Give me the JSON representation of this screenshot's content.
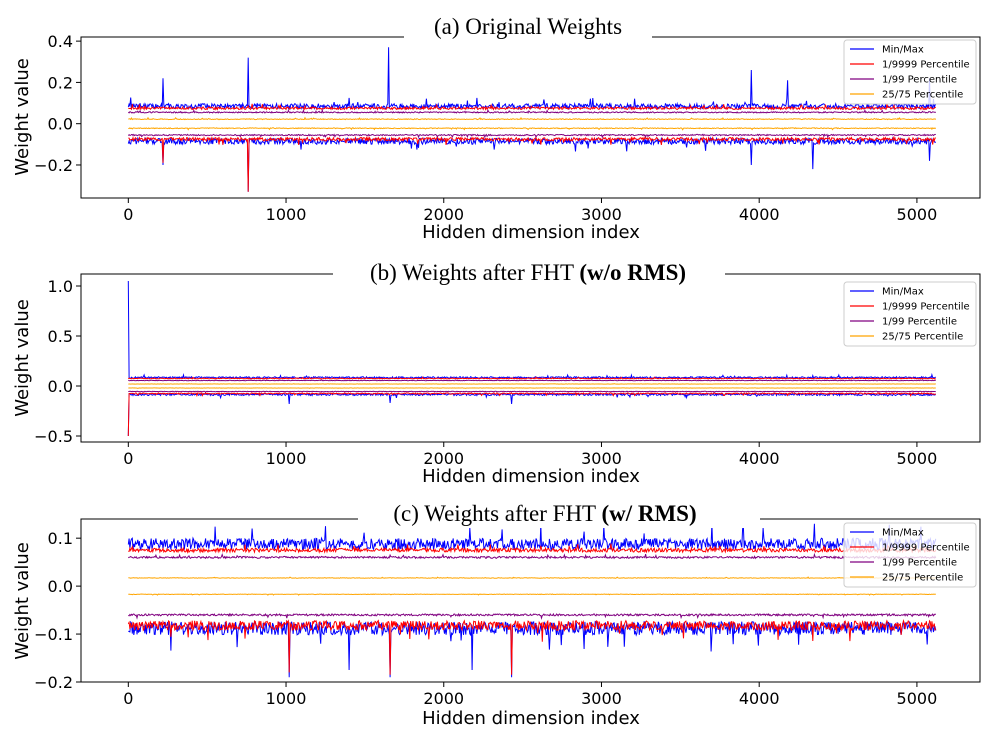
{
  "chart_data": [
    {
      "type": "line",
      "title": "(a) Original Weights",
      "title_bold": "",
      "xlabel": "Hidden dimension index",
      "ylabel": "Weight value",
      "xlim": [
        -300,
        5400
      ],
      "ylim": [
        -0.36,
        0.42
      ],
      "xticks": [
        0,
        1000,
        2000,
        3000,
        4000,
        5000
      ],
      "xtick_labels": [
        "0",
        "1000",
        "2000",
        "3000",
        "4000",
        "5000"
      ],
      "yticks": [
        -0.2,
        0.0,
        0.2,
        0.4
      ],
      "ytick_labels": [
        "−0.2",
        "0.0",
        "0.2",
        "0.4"
      ],
      "legend": [
        "Min/Max",
        "1/9999 Percentile",
        "1/99 Percentile",
        "25/75 Percentile"
      ],
      "legend_loc": "upper right",
      "colors": {
        "minmax": "#0000ff",
        "p9999": "#ff0000",
        "p99": "#800080",
        "p2575": "#ffa500"
      },
      "series": [
        {
          "name": "Min/Max (upper)",
          "base": 0.085,
          "noise": 0.012,
          "spikes": [
            [
              220,
              0.22
            ],
            [
              760,
              0.32
            ],
            [
              1650,
              0.37
            ],
            [
              3950,
              0.26
            ],
            [
              4180,
              0.21
            ],
            [
              5080,
              0.22
            ]
          ]
        },
        {
          "name": "Min/Max (lower)",
          "base": -0.085,
          "noise": 0.015,
          "spikes": [
            [
              220,
              -0.2
            ],
            [
              760,
              -0.33
            ],
            [
              3950,
              -0.2
            ],
            [
              4340,
              -0.22
            ],
            [
              5080,
              -0.18
            ]
          ]
        },
        {
          "name": "1/9999 Percentile (upper)",
          "base": 0.075,
          "noise": 0.006
        },
        {
          "name": "1/9999 Percentile (lower)",
          "base": -0.075,
          "noise": 0.008,
          "spikes": [
            [
              220,
              -0.19
            ],
            [
              760,
              -0.33
            ]
          ]
        },
        {
          "name": "1/99 Percentile (upper)",
          "base": 0.055,
          "noise": 0.003
        },
        {
          "name": "1/99 Percentile (lower)",
          "base": -0.055,
          "noise": 0.003
        },
        {
          "name": "25/75 Percentile (upper)",
          "base": 0.022,
          "noise": 0.002
        },
        {
          "name": "25/75 Percentile (lower)",
          "base": -0.022,
          "noise": 0.002
        }
      ]
    },
    {
      "type": "line",
      "title": "(b) Weights after FHT ",
      "title_bold": "(w/o RMS)",
      "xlabel": "Hidden dimension index",
      "ylabel": "Weight value",
      "xlim": [
        -300,
        5400
      ],
      "ylim": [
        -0.56,
        1.12
      ],
      "xticks": [
        0,
        1000,
        2000,
        3000,
        4000,
        5000
      ],
      "xtick_labels": [
        "0",
        "1000",
        "2000",
        "3000",
        "4000",
        "5000"
      ],
      "yticks": [
        -0.5,
        0.0,
        0.5,
        1.0
      ],
      "ytick_labels": [
        "−0.5",
        "0.0",
        "0.5",
        "1.0"
      ],
      "legend": [
        "Min/Max",
        "1/9999 Percentile",
        "1/99 Percentile",
        "25/75 Percentile"
      ],
      "legend_loc": "upper right",
      "colors": {
        "minmax": "#0000ff",
        "p9999": "#ff0000",
        "p99": "#800080",
        "p2575": "#ffa500"
      },
      "series": [
        {
          "name": "Min/Max (upper)",
          "base": 0.085,
          "noise": 0.008,
          "spikes": [
            [
              0,
              1.05
            ]
          ]
        },
        {
          "name": "Min/Max (lower)",
          "base": -0.085,
          "noise": 0.01,
          "spikes": [
            [
              0,
              -0.5
            ],
            [
              1020,
              -0.18
            ],
            [
              1660,
              -0.17
            ],
            [
              2430,
              -0.18
            ]
          ]
        },
        {
          "name": "1/9999 Percentile (upper)",
          "base": 0.075,
          "noise": 0.004
        },
        {
          "name": "1/9999 Percentile (lower)",
          "base": -0.075,
          "noise": 0.006,
          "spikes": [
            [
              0,
              -0.5
            ]
          ]
        },
        {
          "name": "1/99 Percentile (upper)",
          "base": 0.055,
          "noise": 0.002
        },
        {
          "name": "1/99 Percentile (lower)",
          "base": -0.055,
          "noise": 0.002
        },
        {
          "name": "25/75 Percentile (upper)",
          "base": 0.02,
          "noise": 0.001
        },
        {
          "name": "25/75 Percentile (lower)",
          "base": -0.02,
          "noise": 0.001
        }
      ]
    },
    {
      "type": "line",
      "title": "(c) Weights after FHT ",
      "title_bold": "(w/ RMS)",
      "xlabel": "Hidden dimension index",
      "ylabel": "Weight value",
      "xlim": [
        -300,
        5400
      ],
      "ylim": [
        -0.2,
        0.14
      ],
      "xticks": [
        0,
        1000,
        2000,
        3000,
        4000,
        5000
      ],
      "xtick_labels": [
        "0",
        "1000",
        "2000",
        "3000",
        "4000",
        "5000"
      ],
      "yticks": [
        -0.2,
        -0.1,
        0.0,
        0.1
      ],
      "ytick_labels": [
        "−0.2",
        "−0.1",
        "0.0",
        "0.1"
      ],
      "legend": [
        "Min/Max",
        "1/9999 Percentile",
        "1/99 Percentile",
        "25/75 Percentile"
      ],
      "legend_loc": "upper right",
      "colors": {
        "minmax": "#0000ff",
        "p9999": "#ff0000",
        "p99": "#800080",
        "p2575": "#ffa500"
      },
      "series": [
        {
          "name": "Min/Max (upper)",
          "base": 0.088,
          "noise": 0.012,
          "spikes": [
            [
              1250,
              0.125
            ],
            [
              4350,
              0.13
            ]
          ]
        },
        {
          "name": "Min/Max (lower)",
          "base": -0.088,
          "noise": 0.014,
          "spikes": [
            [
              1020,
              -0.19
            ],
            [
              1400,
              -0.175
            ],
            [
              1660,
              -0.19
            ],
            [
              2180,
              -0.175
            ],
            [
              2430,
              -0.19
            ]
          ]
        },
        {
          "name": "1/9999 Percentile (upper)",
          "base": 0.075,
          "noise": 0.004
        },
        {
          "name": "1/9999 Percentile (lower)",
          "base": -0.082,
          "noise": 0.01,
          "spikes": [
            [
              1020,
              -0.18
            ],
            [
              1660,
              -0.185
            ],
            [
              2430,
              -0.185
            ]
          ]
        },
        {
          "name": "1/99 Percentile (upper)",
          "base": 0.06,
          "noise": 0.002
        },
        {
          "name": "1/99 Percentile (lower)",
          "base": -0.06,
          "noise": 0.002
        },
        {
          "name": "25/75 Percentile (upper)",
          "base": 0.017,
          "noise": 0.0005
        },
        {
          "name": "25/75 Percentile (lower)",
          "base": -0.017,
          "noise": 0.0005
        }
      ]
    }
  ]
}
